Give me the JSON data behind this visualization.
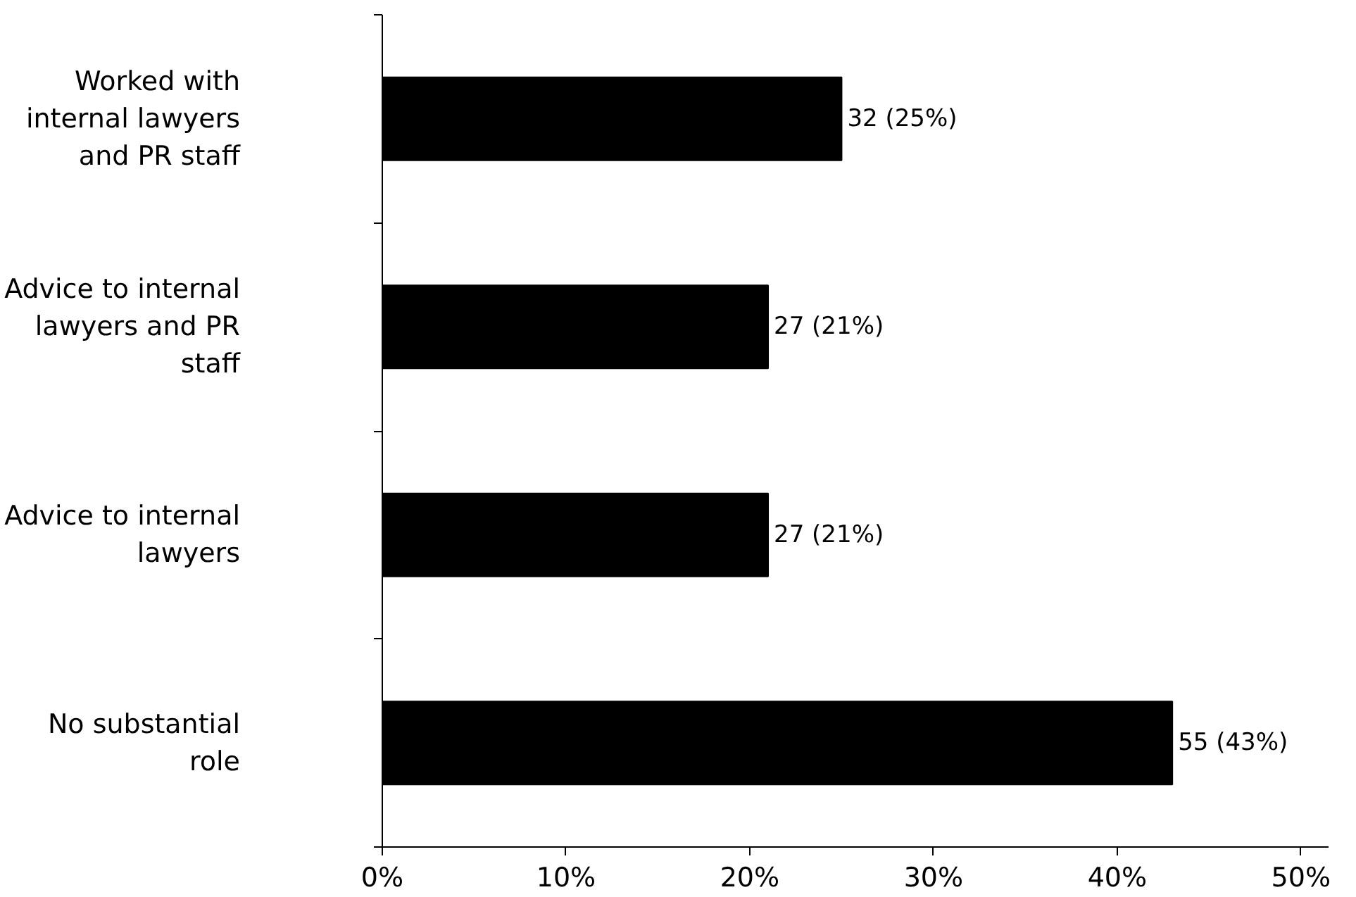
{
  "chart_data": {
    "type": "bar",
    "orientation": "horizontal",
    "categories": [
      "Worked with internal lawyers and PR staff",
      "Advice to internal lawyers and PR staff",
      "Advice to internal lawyers",
      "No substantial role"
    ],
    "values": [
      25,
      21,
      21,
      43
    ],
    "value_labels": [
      "32 (25%)",
      "27 (21%)",
      "27 (21%)",
      "55 (43%)"
    ],
    "color": "#000000",
    "xlim": [
      0,
      51.5
    ],
    "xticks": [
      {
        "value": 0,
        "label": "0%"
      },
      {
        "value": 10,
        "label": "10%"
      },
      {
        "value": 20,
        "label": "20%"
      },
      {
        "value": 30,
        "label": "30%"
      },
      {
        "value": 40,
        "label": "40%"
      },
      {
        "value": 50,
        "label": "50%"
      }
    ],
    "grid": false
  }
}
